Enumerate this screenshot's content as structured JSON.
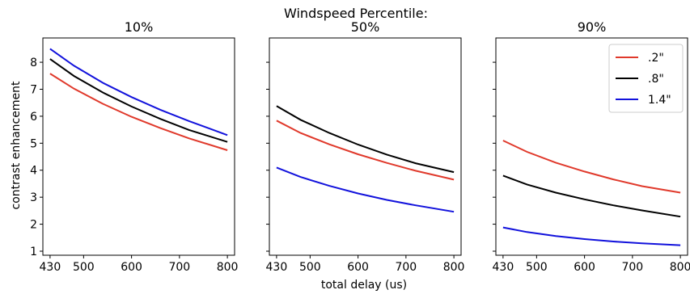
{
  "suptitle": "Windspeed Percentile:",
  "xlabel": "total delay (us)",
  "ylabel": "contrast enhancement",
  "chart_data": [
    {
      "type": "line",
      "title": "10%",
      "x": [
        430,
        480,
        540,
        600,
        660,
        720,
        800
      ],
      "xticks": [
        430,
        500,
        600,
        700,
        800
      ],
      "yticks": [
        1,
        2,
        3,
        4,
        5,
        6,
        7,
        8
      ],
      "xlim": [
        415,
        815
      ],
      "ylim": [
        0.85,
        8.9
      ],
      "series": [
        {
          "name": ".2\"",
          "color": "#e0392b",
          "values": [
            7.58,
            7.02,
            6.46,
            5.98,
            5.56,
            5.18,
            4.74
          ]
        },
        {
          "name": ".8\"",
          "color": "#000000",
          "values": [
            8.12,
            7.49,
            6.88,
            6.36,
            5.9,
            5.49,
            5.05
          ]
        },
        {
          "name": "1.4\"",
          "color": "#1212dc",
          "values": [
            8.5,
            7.87,
            7.24,
            6.71,
            6.24,
            5.82,
            5.3
          ]
        }
      ]
    },
    {
      "type": "line",
      "title": "50%",
      "x": [
        430,
        480,
        540,
        600,
        660,
        720,
        800
      ],
      "xticks": [
        430,
        500,
        600,
        700,
        800
      ],
      "yticks": [
        1,
        2,
        3,
        4,
        5,
        6,
        7,
        8
      ],
      "xlim": [
        415,
        815
      ],
      "ylim": [
        0.85,
        8.9
      ],
      "series": [
        {
          "name": ".2\"",
          "color": "#e0392b",
          "values": [
            5.84,
            5.38,
            4.96,
            4.59,
            4.27,
            3.98,
            3.65
          ]
        },
        {
          "name": ".8\"",
          "color": "#000000",
          "values": [
            6.38,
            5.87,
            5.38,
            4.95,
            4.58,
            4.26,
            3.93
          ]
        },
        {
          "name": "1.4\"",
          "color": "#1212dc",
          "values": [
            4.1,
            3.75,
            3.42,
            3.14,
            2.9,
            2.7,
            2.46
          ]
        }
      ]
    },
    {
      "type": "line",
      "title": "90%",
      "x": [
        430,
        480,
        540,
        600,
        660,
        720,
        800
      ],
      "xticks": [
        430,
        500,
        600,
        700,
        800
      ],
      "yticks": [
        1,
        2,
        3,
        4,
        5,
        6,
        7,
        8
      ],
      "xlim": [
        415,
        815
      ],
      "ylim": [
        0.85,
        8.9
      ],
      "legend": "top-right",
      "series": [
        {
          "name": ".2\"",
          "color": "#e0392b",
          "values": [
            5.1,
            4.68,
            4.28,
            3.95,
            3.66,
            3.41,
            3.17
          ]
        },
        {
          "name": ".8\"",
          "color": "#000000",
          "values": [
            3.8,
            3.47,
            3.17,
            2.92,
            2.7,
            2.51,
            2.28
          ]
        },
        {
          "name": "1.4\"",
          "color": "#1212dc",
          "values": [
            1.88,
            1.71,
            1.56,
            1.45,
            1.36,
            1.29,
            1.22
          ]
        }
      ]
    }
  ]
}
